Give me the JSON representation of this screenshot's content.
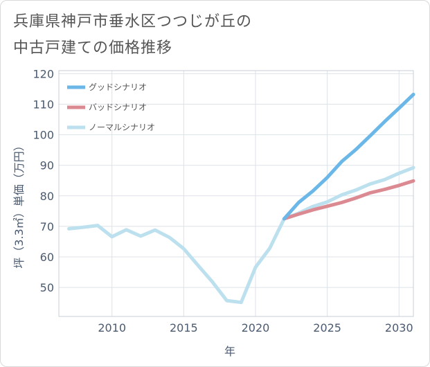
{
  "page": {
    "title_line1": "兵庫県神戸市垂水区つつじが丘の",
    "title_line2": "中古戸建ての価格推移"
  },
  "chart_data": {
    "type": "line",
    "xlabel": "年",
    "ylabel": "坪（3.3㎡）単価（万円）",
    "xlim": [
      2006.3,
      2031
    ],
    "ylim": [
      40.5,
      121
    ],
    "xticks": [
      2010,
      2015,
      2020,
      2025,
      2030
    ],
    "yticks": [
      50,
      60,
      70,
      80,
      90,
      100,
      110,
      120
    ],
    "grid": true,
    "legend_position": "top-left",
    "series": [
      {
        "name": "グッドシナリオ",
        "color": "#6bb7e8",
        "x": [
          2022,
          2023,
          2024,
          2025,
          2026,
          2027,
          2028,
          2029,
          2030,
          2031
        ],
        "y": [
          72.5,
          77.8,
          81.6,
          86.0,
          91.2,
          95.2,
          99.7,
          104.3,
          108.7,
          113.2
        ]
      },
      {
        "name": "バッドシナリオ",
        "color": "#dc8a92",
        "x": [
          2022,
          2023,
          2024,
          2025,
          2026,
          2027,
          2028,
          2029,
          2030,
          2031
        ],
        "y": [
          72.5,
          74.0,
          75.4,
          76.6,
          77.8,
          79.3,
          81.0,
          82.1,
          83.4,
          84.9
        ]
      },
      {
        "name": "ノーマルシナリオ",
        "color": "#bde0ef",
        "x": [
          2007,
          2008,
          2009,
          2010,
          2011,
          2012,
          2013,
          2014,
          2015,
          2016,
          2017,
          2018,
          2019,
          2020,
          2021,
          2022,
          2023,
          2024,
          2025,
          2026,
          2027,
          2028,
          2029,
          2030,
          2031
        ],
        "y": [
          69.2,
          69.7,
          70.3,
          66.6,
          68.9,
          66.8,
          68.8,
          66.4,
          62.7,
          57.2,
          51.8,
          45.7,
          45.1,
          56.6,
          62.9,
          72.5,
          74.3,
          76.5,
          78.0,
          80.3,
          81.9,
          83.9,
          85.3,
          87.4,
          89.2
        ]
      }
    ]
  }
}
